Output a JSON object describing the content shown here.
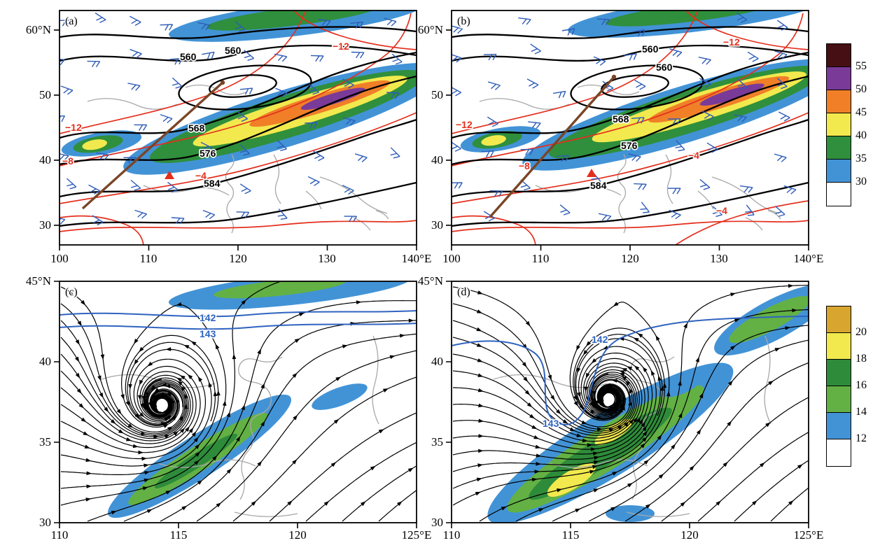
{
  "colors": {
    "black_contour": "#000000",
    "red_contour": "#e42f1d",
    "blue_contour": "#2f63c0",
    "wind_barb": "#2e5cb8",
    "streamline": "#000000",
    "map_gray": "#a8a8a8",
    "cross_section_brown": "#7a4527",
    "marker_red": "#e42f1d"
  },
  "palette_upper": {
    "maroon": "#460f14",
    "purple": "#7a3a98",
    "orange": "#f07f28",
    "yellow": "#f2e94e",
    "green": "#2f8f3c",
    "blue": "#4293d6",
    "white": "#ffffff"
  },
  "palette_lower": {
    "ochre": "#d8a62f",
    "yellow": "#f2e94e",
    "green_dark": "#2e8b3a",
    "green_mid": "#63b144",
    "blue": "#4293d6",
    "white": "#ffffff"
  },
  "colorbars": {
    "upper": {
      "ticks": [
        "55",
        "50",
        "45",
        "40",
        "35",
        "30"
      ]
    },
    "lower": {
      "ticks": [
        "20",
        "18",
        "16",
        "14",
        "12"
      ]
    }
  },
  "panels": {
    "a": {
      "letter": "(a)",
      "x_ticks": [
        "100",
        "110",
        "120",
        "130",
        "140°E"
      ],
      "y_ticks": [
        "60°N",
        "50",
        "40",
        "30"
      ],
      "h560a": "560",
      "h560b": "560",
      "h568": "568",
      "h576": "576",
      "h584": "584",
      "tm12r": "−12",
      "tm12l": "−12",
      "tm8": "−8",
      "tm4": "−4"
    },
    "b": {
      "letter": "(b)",
      "x_ticks": [
        "100",
        "110",
        "120",
        "130",
        "140°E"
      ],
      "y_ticks": [
        "60°N",
        "50",
        "40",
        "30"
      ],
      "h560a": "560",
      "h560b": "560",
      "h568": "568",
      "h576": "576",
      "h584": "584",
      "tm12r": "−12",
      "tm12l": "−12",
      "tm8": "−8",
      "tm4a": "−4",
      "tm4b": "−4"
    },
    "c": {
      "letter": "(c)",
      "x_ticks": [
        "110",
        "115",
        "120",
        "125°E"
      ],
      "y_ticks": [
        "45°N",
        "40",
        "35",
        "30"
      ],
      "c142": "142",
      "c143": "143"
    },
    "d": {
      "letter": "(d)",
      "x_ticks": [
        "110",
        "115",
        "120",
        "125°E"
      ],
      "y_ticks": [
        "45°N",
        "40",
        "35",
        "30"
      ],
      "c142": "142",
      "c143": "143"
    }
  },
  "chart_data": [
    {
      "type": "contour-map",
      "panel": "(a)",
      "x_axis": {
        "unit": "°E",
        "ticks": [
          100,
          110,
          120,
          130,
          140
        ],
        "range": [
          100,
          140
        ]
      },
      "y_axis": {
        "unit": "°N",
        "ticks": [
          60,
          50,
          40,
          30
        ],
        "range": [
          27,
          63
        ]
      },
      "black_contours": {
        "variable": "geopotential height",
        "labeled_values": [
          560,
          560,
          568,
          576,
          584
        ],
        "closed_low_center": {
          "lon": 121,
          "lat": 51.5
        }
      },
      "red_contours": {
        "variable": "temperature",
        "unit": "°C",
        "labeled_values": [
          -12,
          -12,
          -8,
          -4
        ]
      },
      "shading": {
        "variable": "wind speed",
        "unit": "m/s",
        "levels": [
          30,
          35,
          40,
          45,
          50,
          55
        ],
        "jet_core": {
          "lon": 131,
          "lat": 47.4,
          "max_level": "50-55"
        }
      },
      "wind_barbs": true,
      "cross_section_line": {
        "from": {
          "lon": 102.6,
          "lat": 32.6
        },
        "to": {
          "lon": 118.3,
          "lat": 51.9
        }
      },
      "triangle_marker": {
        "lon": 112.3,
        "lat": 37.6
      }
    },
    {
      "type": "contour-map",
      "panel": "(b)",
      "x_axis": {
        "unit": "°E",
        "ticks": [
          100,
          110,
          120,
          130,
          140
        ],
        "range": [
          100,
          140
        ]
      },
      "y_axis": {
        "unit": "°N",
        "ticks": [
          60,
          50,
          40,
          30
        ],
        "range": [
          27,
          63
        ]
      },
      "black_contours": {
        "variable": "geopotential height",
        "labeled_values": [
          560,
          560,
          568,
          576,
          584
        ],
        "closed_low_center": {
          "lon": 121.5,
          "lat": 51.8
        }
      },
      "red_contours": {
        "variable": "temperature",
        "unit": "°C",
        "labeled_values": [
          -12,
          -12,
          -8,
          -4,
          -4
        ]
      },
      "shading": {
        "variable": "wind speed",
        "unit": "m/s",
        "levels": [
          30,
          35,
          40,
          45,
          50,
          55
        ],
        "jet_core": {
          "lon": 131.8,
          "lat": 47.8,
          "max_level": "50-55"
        }
      },
      "wind_barbs": true,
      "cross_section_line": {
        "from": {
          "lon": 104.3,
          "lat": 31.3
        },
        "to": {
          "lon": 118.2,
          "lat": 52.8
        }
      },
      "triangle_marker": {
        "lon": 115.7,
        "lat": 37.6
      }
    },
    {
      "type": "streamline-map",
      "panel": "(c)",
      "x_axis": {
        "unit": "°E",
        "ticks": [
          110,
          115,
          120,
          125
        ],
        "range": [
          110,
          125
        ]
      },
      "y_axis": {
        "unit": "°N",
        "ticks": [
          45,
          40,
          35,
          30
        ],
        "range": [
          30,
          45
        ]
      },
      "streamlines": {
        "variable": "wind",
        "vortex_center": {
          "lon": 114.3,
          "lat": 37.2
        }
      },
      "blue_contours": {
        "labeled_values": [
          142,
          143
        ]
      },
      "shading": {
        "variable": "wind speed",
        "unit": "m/s",
        "levels": [
          12,
          14,
          16,
          18,
          20
        ]
      }
    },
    {
      "type": "streamline-map",
      "panel": "(d)",
      "x_axis": {
        "unit": "°E",
        "ticks": [
          110,
          115,
          120,
          125
        ],
        "range": [
          110,
          125
        ]
      },
      "y_axis": {
        "unit": "°N",
        "ticks": [
          45,
          40,
          35,
          30
        ],
        "range": [
          30,
          45
        ]
      },
      "streamlines": {
        "variable": "wind",
        "vortex_center": {
          "lon": 116.6,
          "lat": 37.5
        }
      },
      "blue_contours": {
        "labeled_values": [
          142,
          143
        ]
      },
      "shading": {
        "variable": "wind speed",
        "unit": "m/s",
        "levels": [
          12,
          14,
          16,
          18,
          20
        ]
      }
    }
  ]
}
